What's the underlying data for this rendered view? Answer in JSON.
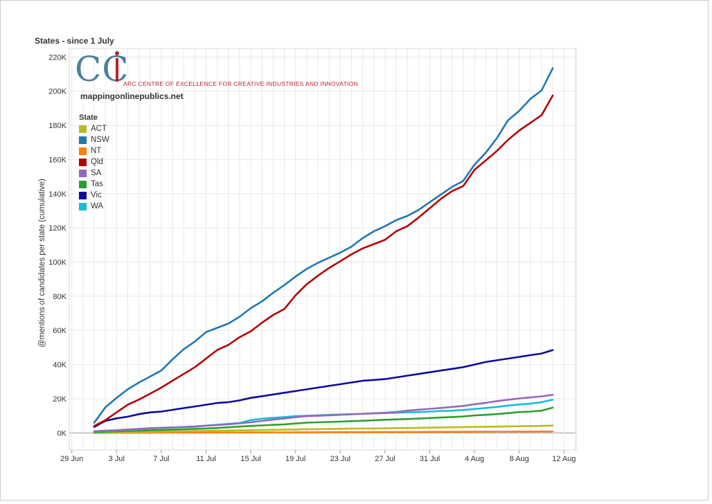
{
  "chart_data": {
    "type": "line",
    "title": "States - since 1 July",
    "xlabel": "",
    "ylabel": "@mentions of candidates per state (cumulative)",
    "x_tick_labels": [
      "29 Jun",
      "3 Jul",
      "7 Jul",
      "11 Jul",
      "15 Jul",
      "19 Jul",
      "23 Jul",
      "27 Jul",
      "31 Jul",
      "4 Aug",
      "8 Aug",
      "12 Aug"
    ],
    "y_tick_labels": [
      "0K",
      "20K",
      "40K",
      "60K",
      "80K",
      "100K",
      "120K",
      "140K",
      "160K",
      "180K",
      "200K",
      "220K"
    ],
    "ylim": [
      -10000,
      225000
    ],
    "grid": true,
    "legend_title": "State",
    "legend_position": "top-left",
    "dates": [
      "1 Jul",
      "2 Jul",
      "3 Jul",
      "4 Jul",
      "5 Jul",
      "6 Jul",
      "7 Jul",
      "8 Jul",
      "9 Jul",
      "10 Jul",
      "11 Jul",
      "12 Jul",
      "13 Jul",
      "14 Jul",
      "15 Jul",
      "16 Jul",
      "17 Jul",
      "18 Jul",
      "19 Jul",
      "20 Jul",
      "21 Jul",
      "22 Jul",
      "23 Jul",
      "24 Jul",
      "25 Jul",
      "26 Jul",
      "27 Jul",
      "28 Jul",
      "29 Jul",
      "30 Jul",
      "31 Jul",
      "1 Aug",
      "2 Aug",
      "3 Aug",
      "4 Aug",
      "5 Aug",
      "6 Aug",
      "7 Aug",
      "8 Aug",
      "9 Aug",
      "10 Aug",
      "11 Aug"
    ],
    "series": [
      {
        "name": "ACT",
        "color": "#b5bd22",
        "values": [
          200,
          300,
          400,
          500,
          600,
          700,
          800,
          900,
          1000,
          1100,
          1200,
          1300,
          1400,
          1500,
          1600,
          1700,
          1800,
          1900,
          2000,
          2100,
          2200,
          2300,
          2400,
          2500,
          2550,
          2600,
          2700,
          2800,
          2900,
          3000,
          3100,
          3200,
          3300,
          3400,
          3500,
          3600,
          3700,
          3800,
          3900,
          4000,
          4100,
          4300
        ]
      },
      {
        "name": "NSW",
        "color": "#1f77b4",
        "values": [
          6000,
          15000,
          20500,
          25500,
          29500,
          33000,
          36500,
          43000,
          49000,
          53500,
          59000,
          61500,
          64000,
          68000,
          73000,
          77000,
          82000,
          86500,
          91500,
          96000,
          99500,
          102500,
          105500,
          109000,
          114000,
          118000,
          121000,
          124500,
          127000,
          130500,
          135000,
          139500,
          144000,
          147500,
          157000,
          164000,
          172500,
          183000,
          188500,
          195500,
          200500,
          213500
        ]
      },
      {
        "name": "NT",
        "color": "#ff7f0e",
        "values": [
          0,
          20,
          40,
          60,
          80,
          100,
          120,
          140,
          160,
          180,
          200,
          220,
          240,
          260,
          280,
          300,
          320,
          340,
          360,
          380,
          400,
          420,
          440,
          460,
          480,
          500,
          520,
          540,
          560,
          580,
          600,
          620,
          640,
          660,
          680,
          700,
          720,
          740,
          760,
          780,
          800,
          820
        ]
      },
      {
        "name": "Qld",
        "color": "#b30000",
        "values": [
          4000,
          7500,
          12000,
          16500,
          19500,
          23000,
          26500,
          30500,
          34500,
          38500,
          43500,
          48500,
          51500,
          56000,
          59500,
          64500,
          69000,
          72500,
          80500,
          87000,
          92000,
          96500,
          100500,
          104500,
          108000,
          110500,
          113000,
          118000,
          121000,
          126000,
          131500,
          137000,
          141500,
          144500,
          154000,
          159500,
          165000,
          171500,
          177000,
          181500,
          186000,
          197500
        ]
      },
      {
        "name": "SA",
        "color": "#9467bd",
        "values": [
          1000,
          1300,
          1600,
          2000,
          2400,
          2800,
          3000,
          3200,
          3400,
          3600,
          4200,
          4600,
          5000,
          5600,
          6200,
          7000,
          7800,
          8400,
          9200,
          9800,
          10000,
          10300,
          10600,
          10900,
          11200,
          11500,
          11800,
          12300,
          13000,
          13600,
          14100,
          14600,
          15200,
          15800,
          16800,
          17600,
          18600,
          19400,
          20200,
          20800,
          21400,
          22300
        ]
      },
      {
        "name": "Tas",
        "color": "#2ca02c",
        "values": [
          400,
          700,
          900,
          1100,
          1300,
          1500,
          1700,
          1900,
          2100,
          2300,
          2600,
          2900,
          3300,
          3700,
          4100,
          4400,
          4700,
          5000,
          5500,
          6000,
          6200,
          6400,
          6600,
          6900,
          7100,
          7400,
          7700,
          7900,
          8100,
          8400,
          8700,
          9000,
          9300,
          9600,
          10200,
          10600,
          11000,
          11600,
          12200,
          12500,
          13000,
          14800
        ]
      },
      {
        "name": "Vic",
        "color": "#0a0aa0",
        "values": [
          3500,
          7000,
          8500,
          9500,
          11000,
          12000,
          12500,
          13500,
          14500,
          15500,
          16500,
          17500,
          18000,
          19000,
          20500,
          21500,
          22500,
          23500,
          24500,
          25500,
          26500,
          27500,
          28500,
          29500,
          30500,
          31000,
          31500,
          32500,
          33500,
          34500,
          35500,
          36500,
          37500,
          38500,
          40000,
          41500,
          42500,
          43500,
          44500,
          45500,
          46500,
          48500
        ]
      },
      {
        "name": "WA",
        "color": "#17becf",
        "values": [
          800,
          1100,
          1400,
          1800,
          2200,
          2600,
          2900,
          3200,
          3500,
          3800,
          4300,
          4800,
          5300,
          5800,
          7500,
          8300,
          8800,
          9300,
          9800,
          10000,
          10300,
          10600,
          10800,
          11000,
          11200,
          11400,
          11600,
          11800,
          12000,
          12200,
          12500,
          12800,
          13000,
          13400,
          14000,
          14600,
          15200,
          16000,
          16600,
          17200,
          18000,
          19400
        ]
      }
    ]
  },
  "logo": {
    "mark": "CCi",
    "org_name": "ARC CENTRE OF EXCELLENCE FOR CREATIVE INDUSTRIES AND INNOVATION",
    "site": "mappingonlinepublics.net"
  },
  "colors": {
    "grid": "#e8e8e8",
    "zero_line": "#999999",
    "plot_border": "#d8d8d8",
    "logo_blue": "#4e7f99",
    "logo_red": "#b3262e"
  }
}
